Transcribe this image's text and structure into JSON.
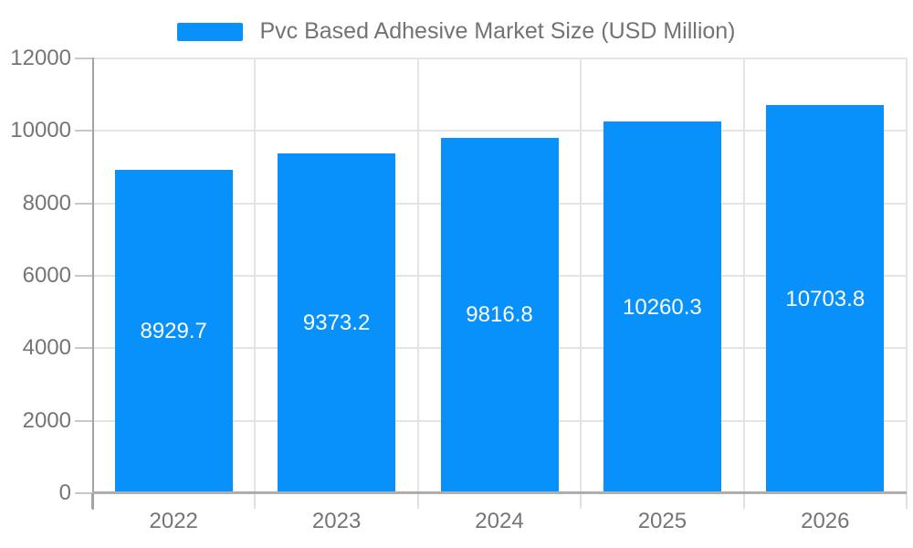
{
  "legend": {
    "label": "Pvc Based Adhesive Market Size (USD Million)"
  },
  "chart_data": {
    "type": "bar",
    "title": "Pvc Based Adhesive Market Size (USD Million)",
    "categories": [
      "2022",
      "2023",
      "2024",
      "2025",
      "2026"
    ],
    "series": [
      {
        "name": "Pvc Based Adhesive Market Size (USD Million)",
        "values": [
          8929.7,
          9373.2,
          9816.8,
          10260.3,
          10703.8
        ]
      }
    ],
    "value_labels": [
      "8929.7",
      "9373.2",
      "9816.8",
      "10260.3",
      "10703.8"
    ],
    "ytick_labels": [
      "0",
      "2000",
      "4000",
      "6000",
      "8000",
      "10000",
      "12000"
    ],
    "ylim": [
      0,
      12000
    ],
    "ytick_step": 2000,
    "xlabel": "",
    "ylabel": "",
    "grid": true,
    "legend_position": "top",
    "colors": {
      "bar": "#0890fb",
      "grid": "#e4e4e4",
      "axis": "#a3a3a3",
      "label_text": "#757575",
      "value_text": "#ffffff",
      "legend_text": "#737373"
    }
  }
}
